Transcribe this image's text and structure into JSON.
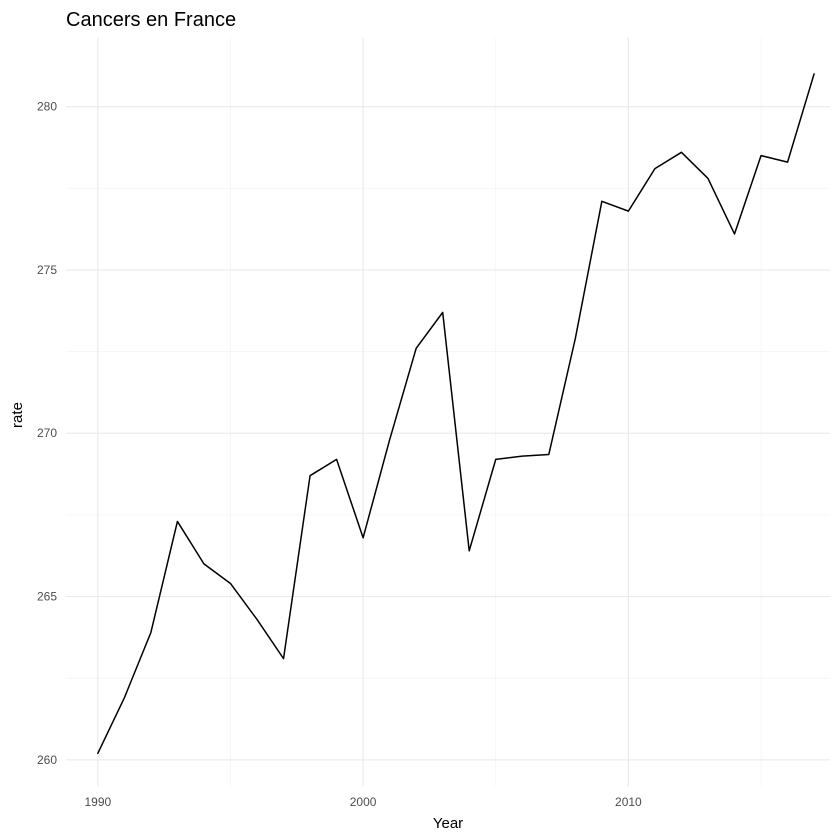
{
  "chart_data": {
    "type": "line",
    "title": "Cancers en France",
    "xlabel": "Year",
    "ylabel": "rate",
    "xlim": [
      1988.8,
      2017.6
    ],
    "ylim": [
      259.2,
      282.1
    ],
    "x_major_ticks": [
      1990,
      2000,
      2010
    ],
    "x_major_tick_labels": [
      "1990",
      "2000",
      "2010"
    ],
    "x_minor_ticks": [
      1995,
      2005,
      2015
    ],
    "y_major_ticks": [
      260,
      265,
      270,
      275,
      280
    ],
    "y_major_tick_labels": [
      "260",
      "265",
      "270",
      "275",
      "280"
    ],
    "y_minor_ticks": [
      262.5,
      267.5,
      272.5,
      277.5
    ],
    "grid": true,
    "legend": "none",
    "line_color": "#000000",
    "x": [
      1990,
      1991,
      1992,
      1993,
      1994,
      1995,
      1996,
      1997,
      1998,
      1999,
      2000,
      2001,
      2002,
      2003,
      2004,
      2005,
      2006,
      2007,
      2008,
      2009,
      2010,
      2011,
      2012,
      2013,
      2014,
      2015,
      2016,
      2017
    ],
    "y": [
      260.2,
      261.9,
      263.9,
      267.3,
      266.0,
      265.4,
      264.3,
      263.1,
      268.7,
      269.2,
      266.8,
      269.8,
      272.6,
      273.7,
      266.4,
      269.2,
      269.3,
      269.35,
      272.9,
      277.1,
      276.8,
      278.1,
      278.6,
      277.8,
      276.1,
      278.5,
      278.3,
      281.0
    ]
  }
}
